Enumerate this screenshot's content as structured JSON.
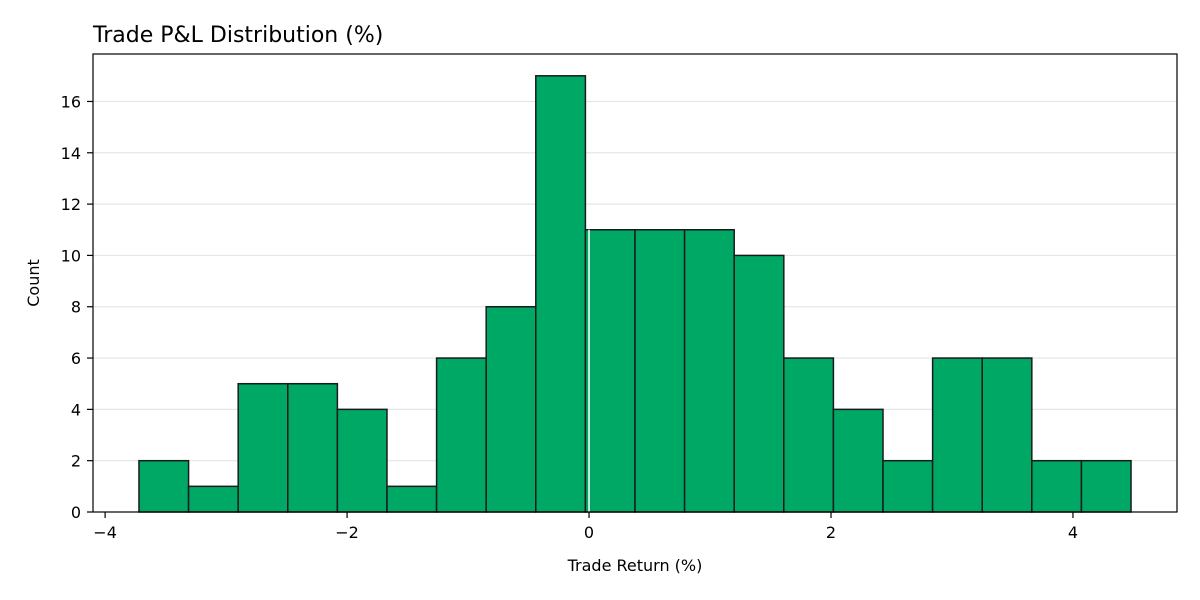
{
  "chart_data": {
    "type": "bar",
    "title": "Trade P&L Distribution (%)",
    "xlabel": "Trade Return (%)",
    "ylabel": "Count",
    "bin_edges": [
      -3.72,
      -3.31,
      -2.9,
      -2.49,
      -2.08,
      -1.67,
      -1.26,
      -0.85,
      -0.44,
      -0.03,
      0.38,
      0.79,
      1.2,
      1.61,
      2.02,
      2.43,
      2.84,
      3.25,
      3.66,
      4.07,
      4.48
    ],
    "values": [
      2,
      1,
      5,
      5,
      4,
      1,
      6,
      8,
      17,
      11,
      11,
      11,
      10,
      6,
      4,
      2,
      6,
      6,
      2,
      2
    ],
    "xlim": [
      -4.1,
      4.86
    ],
    "ylim": [
      0,
      17.85
    ],
    "xticks": [
      -4,
      -2,
      0,
      2,
      4
    ],
    "xtick_labels": [
      "−4",
      "−2",
      "0",
      "2",
      "4"
    ],
    "yticks": [
      0,
      2,
      4,
      6,
      8,
      10,
      12,
      14,
      16
    ],
    "ytick_labels": [
      "0",
      "2",
      "4",
      "6",
      "8",
      "10",
      "12",
      "14",
      "16"
    ],
    "reference_line_x": 0,
    "grid": "horizontal",
    "colors": {
      "bar_fill": "#00a866",
      "bar_edge": "#1a1a1a",
      "grid": "#e6e6e6",
      "reference_line": "#ffffff"
    }
  }
}
